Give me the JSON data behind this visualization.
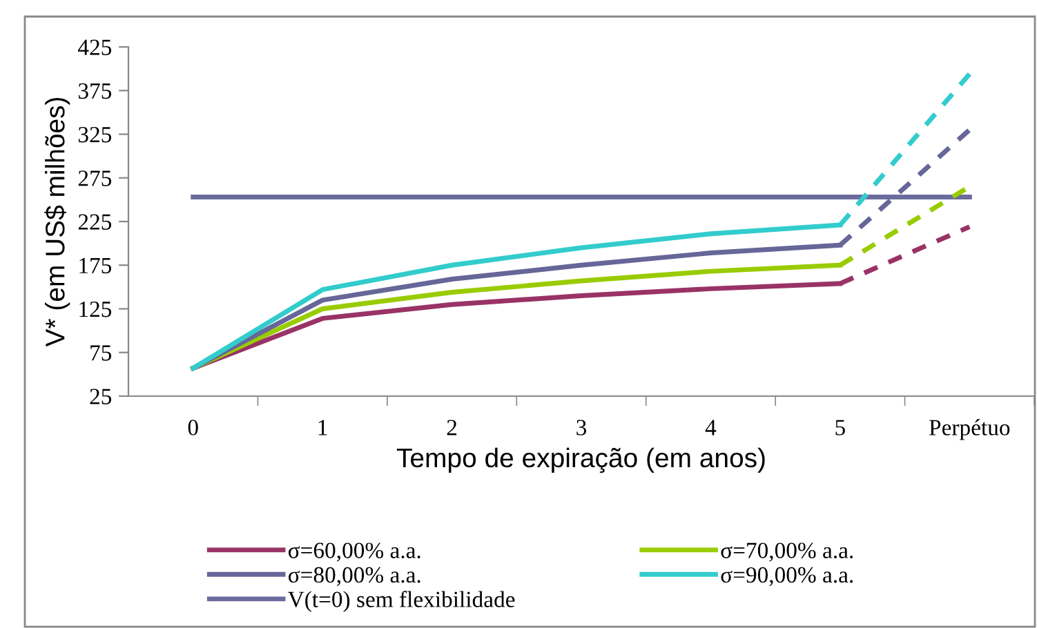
{
  "chart_data": {
    "type": "line",
    "xlabel": "Tempo de expiração (em anos)",
    "ylabel": "V* (em US$ milhões)",
    "categories": [
      "0",
      "1",
      "2",
      "3",
      "4",
      "5",
      "Perpétuo"
    ],
    "ylim": [
      25,
      425
    ],
    "yticks": [
      25,
      75,
      125,
      175,
      225,
      275,
      325,
      375,
      425
    ],
    "grid": false,
    "legend": "bottom",
    "line_style": "solid",
    "series": [
      {
        "name": "σ=60,00% a.a.",
        "color": "#993366",
        "values": [
          57,
          114,
          130,
          140,
          148,
          154,
          null
        ]
      },
      {
        "name": "σ=70,00% a.a.",
        "color": "#99cc00",
        "values": [
          57,
          125,
          144,
          157,
          168,
          175,
          null
        ]
      },
      {
        "name": "σ=80,00% a.a.",
        "color": "#666699",
        "values": [
          57,
          135,
          159,
          175,
          189,
          198,
          null
        ]
      },
      {
        "name": "σ=90,00% a.a.",
        "color": "#33cccc",
        "values": [
          57,
          147,
          175,
          195,
          211,
          221,
          null
        ]
      },
      {
        "name": "V(t=0) sem flexibilidade",
        "color": "#6b6b9e",
        "values": [
          253,
          253,
          253,
          253,
          253,
          253,
          253
        ]
      },
      {
        "color": "#993366",
        "line_style": "dashed",
        "values": [
          null,
          null,
          null,
          null,
          null,
          154,
          219
        ]
      },
      {
        "color": "#99cc00",
        "line_style": "dashed",
        "values": [
          null,
          null,
          null,
          null,
          null,
          175,
          265
        ]
      },
      {
        "color": "#666699",
        "line_style": "dashed",
        "values": [
          null,
          null,
          null,
          null,
          null,
          198,
          330
        ]
      },
      {
        "color": "#33cccc",
        "line_style": "dashed",
        "values": [
          null,
          null,
          null,
          null,
          null,
          221,
          394
        ]
      }
    ]
  }
}
